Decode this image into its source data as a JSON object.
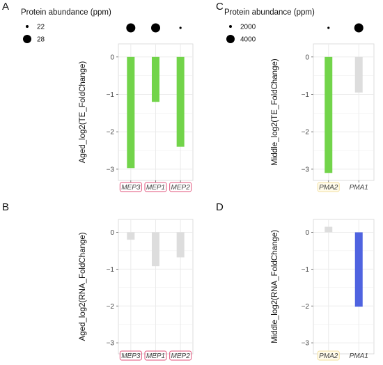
{
  "colors": {
    "green": "#72d44a",
    "gray": "#dddddd",
    "blue": "#4f63e0",
    "pink_border": "#e0527a",
    "yellow_border": "#f3df9d",
    "panel_bg": "#ffffff",
    "grid": "#ebebeb",
    "panel_border": "#d6d6d6"
  },
  "chart_data": [
    {
      "panel": "A",
      "type": "bar",
      "ylabel": "Aged_log2(TE_FoldChange)",
      "ylim": [
        -3.3,
        0.35
      ],
      "yticks": [
        0,
        -1,
        -2,
        -3
      ],
      "categories": [
        "MEP3",
        "MEP1",
        "MEP2"
      ],
      "values": [
        -2.97,
        -1.2,
        -2.4
      ],
      "bar_colors": [
        "green",
        "green",
        "green"
      ],
      "label_border": "pink_border",
      "abundance_legend_title": "Protein abundance (ppm)",
      "abundance_legend": [
        {
          "label": "22",
          "size": 22
        },
        {
          "label": "28",
          "size": 28
        }
      ],
      "abundance": [
        28,
        28,
        22
      ]
    },
    {
      "panel": "B",
      "type": "bar",
      "ylabel": "Aged_log2(RNA_FoldChange)",
      "ylim": [
        -3.3,
        0.35
      ],
      "yticks": [
        0,
        -1,
        -2,
        -3
      ],
      "categories": [
        "MEP3",
        "MEP1",
        "MEP2"
      ],
      "values": [
        -0.2,
        -0.92,
        -0.68
      ],
      "bar_colors": [
        "gray",
        "gray",
        "gray"
      ],
      "label_border": "pink_border"
    },
    {
      "panel": "C",
      "type": "bar",
      "ylabel": "Middle_log2(TE_FoldChange)",
      "ylim": [
        -3.3,
        0.35
      ],
      "yticks": [
        0,
        -1,
        -2,
        -3
      ],
      "categories": [
        "PMA2",
        "PMA1"
      ],
      "values": [
        -3.1,
        -0.95
      ],
      "bar_colors": [
        "green",
        "gray"
      ],
      "label_border": "yellow_border",
      "label_border_on": [
        true,
        false
      ],
      "abundance_legend_title": "Protein abundance (ppm)",
      "abundance_legend": [
        {
          "label": "2000",
          "size": 2000
        },
        {
          "label": "4000",
          "size": 4000
        }
      ],
      "abundance": [
        1000,
        4000
      ]
    },
    {
      "panel": "D",
      "type": "bar",
      "ylabel": "Middle_log2(RNA_FoldChange)",
      "ylim": [
        -3.3,
        0.35
      ],
      "yticks": [
        0,
        -1,
        -2,
        -3
      ],
      "categories": [
        "PMA2",
        "PMA1"
      ],
      "values": [
        0.15,
        -2.02
      ],
      "bar_colors": [
        "gray",
        "blue"
      ],
      "label_border": "yellow_border",
      "label_border_on": [
        true,
        false
      ]
    }
  ]
}
